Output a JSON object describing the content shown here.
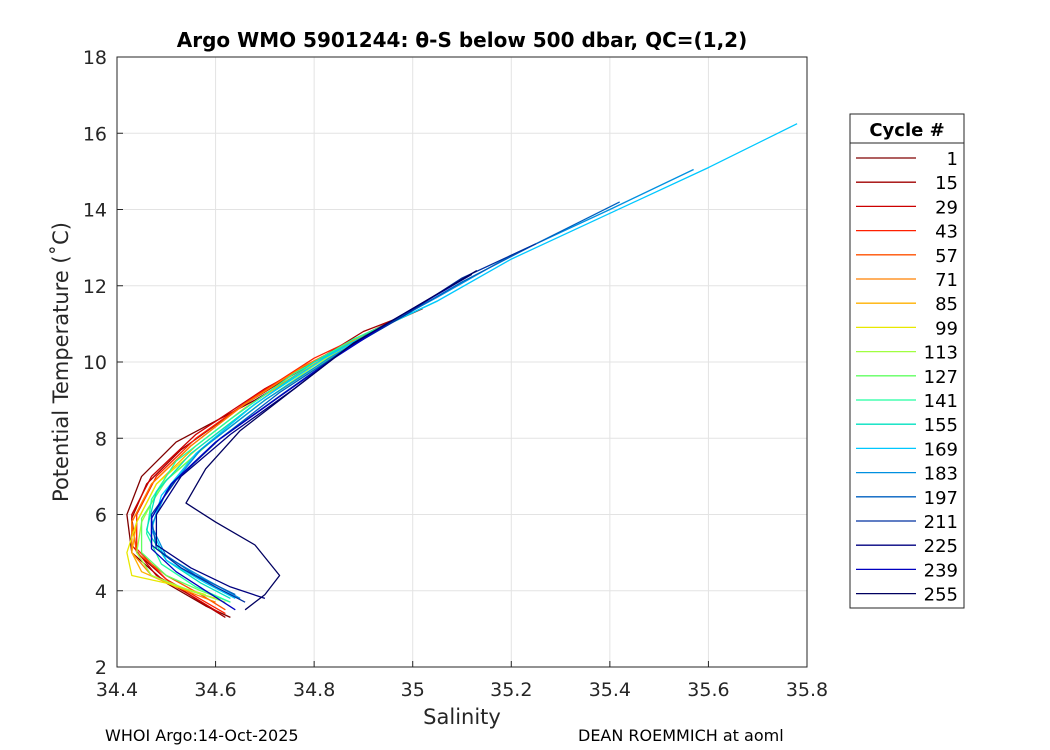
{
  "chart_data": {
    "type": "line",
    "title": "Argo WMO 5901244: θ-S below 500 dbar,  QC=(1,2)",
    "xlabel": "Salinity",
    "ylabel": "Potential Temperature (˚C)",
    "xlim": [
      34.4,
      35.8
    ],
    "ylim": [
      2,
      18
    ],
    "xticks": [
      34.4,
      34.6,
      34.8,
      35,
      35.2,
      35.4,
      35.6,
      35.8
    ],
    "xtick_labels": [
      "34.4",
      "34.6",
      "34.8",
      "35",
      "35.2",
      "35.4",
      "35.6",
      "35.8"
    ],
    "yticks": [
      2,
      4,
      6,
      8,
      10,
      12,
      14,
      16,
      18
    ],
    "ytick_labels": [
      "2",
      "4",
      "6",
      "8",
      "10",
      "12",
      "14",
      "16",
      "18"
    ],
    "grid": true,
    "legend_title": "Cycle #",
    "legend_position": "right",
    "colormap": "jet",
    "series": [
      {
        "name": "1",
        "color": "#800000",
        "points": [
          [
            35.02,
            11.4
          ],
          [
            34.95,
            11.0
          ],
          [
            34.82,
            10.1
          ],
          [
            34.68,
            9.0
          ],
          [
            34.52,
            7.9
          ],
          [
            34.45,
            7.0
          ],
          [
            34.42,
            6.0
          ],
          [
            34.43,
            5.0
          ],
          [
            34.5,
            4.2
          ],
          [
            34.58,
            3.6
          ],
          [
            34.63,
            3.3
          ]
        ]
      },
      {
        "name": "15",
        "color": "#a00000",
        "points": [
          [
            35.0,
            11.3
          ],
          [
            34.9,
            10.8
          ],
          [
            34.8,
            10.0
          ],
          [
            34.66,
            8.9
          ],
          [
            34.53,
            7.7
          ],
          [
            34.46,
            6.8
          ],
          [
            34.43,
            5.9
          ],
          [
            34.44,
            5.0
          ],
          [
            34.5,
            4.3
          ],
          [
            34.57,
            3.7
          ],
          [
            34.62,
            3.3
          ]
        ]
      },
      {
        "name": "29",
        "color": "#cc0000",
        "points": [
          [
            34.96,
            11.1
          ],
          [
            34.84,
            10.3
          ],
          [
            34.7,
            9.3
          ],
          [
            34.56,
            8.1
          ],
          [
            34.47,
            7.0
          ],
          [
            34.43,
            6.0
          ],
          [
            34.43,
            5.2
          ],
          [
            34.48,
            4.4
          ],
          [
            34.56,
            3.8
          ],
          [
            34.61,
            3.4
          ]
        ]
      },
      {
        "name": "43",
        "color": "#ff2000",
        "points": [
          [
            34.93,
            10.9
          ],
          [
            34.8,
            10.1
          ],
          [
            34.68,
            9.1
          ],
          [
            34.56,
            8.0
          ],
          [
            34.48,
            7.0
          ],
          [
            34.44,
            6.0
          ],
          [
            34.44,
            5.1
          ],
          [
            34.5,
            4.3
          ],
          [
            34.58,
            3.7
          ],
          [
            34.62,
            3.4
          ]
        ]
      },
      {
        "name": "57",
        "color": "#ff5000",
        "points": [
          [
            34.92,
            10.8
          ],
          [
            34.78,
            9.9
          ],
          [
            34.66,
            8.9
          ],
          [
            34.55,
            7.8
          ],
          [
            34.47,
            6.8
          ],
          [
            34.43,
            5.8
          ],
          [
            34.44,
            5.0
          ],
          [
            34.5,
            4.4
          ],
          [
            34.57,
            3.9
          ],
          [
            34.62,
            3.5
          ]
        ]
      },
      {
        "name": "71",
        "color": "#ff8000",
        "points": [
          [
            34.9,
            10.7
          ],
          [
            34.78,
            9.9
          ],
          [
            34.66,
            8.9
          ],
          [
            34.55,
            7.8
          ],
          [
            34.47,
            6.8
          ],
          [
            34.43,
            5.8
          ],
          [
            34.43,
            5.0
          ],
          [
            34.47,
            4.4
          ],
          [
            34.54,
            4.0
          ],
          [
            34.6,
            3.7
          ]
        ]
      },
      {
        "name": "85",
        "color": "#ffb000",
        "points": [
          [
            34.9,
            10.7
          ],
          [
            34.78,
            9.8
          ],
          [
            34.66,
            8.8
          ],
          [
            34.56,
            7.8
          ],
          [
            34.48,
            6.8
          ],
          [
            34.44,
            5.8
          ],
          [
            34.43,
            5.0
          ],
          [
            34.45,
            4.5
          ],
          [
            34.52,
            4.1
          ],
          [
            34.6,
            3.8
          ]
        ]
      },
      {
        "name": "99",
        "color": "#e8e800",
        "points": [
          [
            34.9,
            10.6
          ],
          [
            34.78,
            9.8
          ],
          [
            34.67,
            8.8
          ],
          [
            34.57,
            7.8
          ],
          [
            34.48,
            6.8
          ],
          [
            34.44,
            5.8
          ],
          [
            34.42,
            5.0
          ],
          [
            34.43,
            4.4
          ],
          [
            34.5,
            4.2
          ],
          [
            34.58,
            3.9
          ]
        ]
      },
      {
        "name": "113",
        "color": "#a0ff40",
        "points": [
          [
            34.92,
            10.8
          ],
          [
            34.8,
            9.9
          ],
          [
            34.69,
            8.9
          ],
          [
            34.58,
            7.8
          ],
          [
            34.49,
            6.8
          ],
          [
            34.45,
            5.8
          ],
          [
            34.44,
            5.0
          ],
          [
            34.47,
            4.4
          ],
          [
            34.55,
            4.0
          ],
          [
            34.62,
            3.7
          ]
        ]
      },
      {
        "name": "127",
        "color": "#60ff60",
        "points": [
          [
            34.94,
            10.9
          ],
          [
            34.82,
            10.0
          ],
          [
            34.7,
            9.0
          ],
          [
            34.59,
            7.9
          ],
          [
            34.5,
            6.9
          ],
          [
            34.45,
            5.9
          ],
          [
            34.45,
            5.0
          ],
          [
            34.5,
            4.4
          ],
          [
            34.57,
            4.0
          ],
          [
            34.63,
            3.7
          ]
        ]
      },
      {
        "name": "141",
        "color": "#20ffa0",
        "points": [
          [
            35.0,
            11.3
          ],
          [
            34.88,
            10.6
          ],
          [
            34.76,
            9.7
          ],
          [
            34.63,
            8.5
          ],
          [
            34.52,
            7.4
          ],
          [
            34.47,
            6.4
          ],
          [
            34.46,
            5.5
          ],
          [
            34.49,
            4.7
          ],
          [
            34.56,
            4.1
          ],
          [
            34.63,
            3.7
          ]
        ]
      },
      {
        "name": "155",
        "color": "#00e0c0",
        "points": [
          [
            35.05,
            11.6
          ],
          [
            34.92,
            10.8
          ],
          [
            34.8,
            10.0
          ],
          [
            34.67,
            8.8
          ],
          [
            34.55,
            7.6
          ],
          [
            34.48,
            6.6
          ],
          [
            34.46,
            5.6
          ],
          [
            34.5,
            4.8
          ],
          [
            34.57,
            4.2
          ],
          [
            34.63,
            3.8
          ]
        ]
      },
      {
        "name": "169",
        "color": "#00c8ff",
        "points": [
          [
            35.78,
            16.25
          ],
          [
            35.6,
            15.1
          ],
          [
            35.4,
            13.9
          ],
          [
            35.2,
            12.7
          ],
          [
            35.05,
            11.6
          ],
          [
            34.95,
            11.0
          ],
          [
            34.82,
            10.1
          ],
          [
            34.68,
            8.9
          ],
          [
            34.56,
            7.6
          ],
          [
            34.49,
            6.5
          ],
          [
            34.47,
            5.6
          ],
          [
            34.5,
            4.8
          ],
          [
            34.58,
            4.2
          ],
          [
            34.64,
            3.8
          ]
        ]
      },
      {
        "name": "183",
        "color": "#0090e0",
        "points": [
          [
            35.57,
            15.05
          ],
          [
            35.4,
            14.0
          ],
          [
            35.2,
            12.8
          ],
          [
            35.05,
            11.7
          ],
          [
            34.95,
            11.0
          ],
          [
            34.83,
            10.1
          ],
          [
            34.7,
            9.0
          ],
          [
            34.57,
            7.7
          ],
          [
            34.5,
            6.6
          ],
          [
            34.47,
            5.7
          ],
          [
            34.5,
            4.9
          ],
          [
            34.58,
            4.3
          ],
          [
            34.65,
            3.8
          ]
        ]
      },
      {
        "name": "197",
        "color": "#0060c0",
        "points": [
          [
            35.42,
            14.2
          ],
          [
            35.25,
            13.1
          ],
          [
            35.1,
            12.1
          ],
          [
            34.98,
            11.2
          ],
          [
            34.86,
            10.3
          ],
          [
            34.73,
            9.2
          ],
          [
            34.6,
            7.9
          ],
          [
            34.51,
            6.8
          ],
          [
            34.47,
            5.9
          ],
          [
            34.48,
            5.1
          ],
          [
            34.56,
            4.4
          ],
          [
            34.64,
            3.9
          ]
        ]
      },
      {
        "name": "211",
        "color": "#0030a0",
        "points": [
          [
            35.25,
            13.1
          ],
          [
            35.1,
            12.2
          ],
          [
            34.98,
            11.2
          ],
          [
            34.86,
            10.3
          ],
          [
            34.74,
            9.2
          ],
          [
            34.61,
            8.0
          ],
          [
            34.52,
            6.9
          ],
          [
            34.47,
            6.0
          ],
          [
            34.47,
            5.2
          ],
          [
            34.53,
            4.6
          ],
          [
            34.6,
            4.1
          ],
          [
            34.66,
            3.7
          ]
        ]
      },
      {
        "name": "225",
        "color": "#000080",
        "points": [
          [
            35.12,
            12.3
          ],
          [
            35.0,
            11.4
          ],
          [
            34.87,
            10.4
          ],
          [
            34.76,
            9.3
          ],
          [
            34.63,
            8.1
          ],
          [
            34.53,
            7.0
          ],
          [
            34.48,
            6.0
          ],
          [
            34.48,
            5.2
          ],
          [
            34.55,
            4.6
          ],
          [
            34.63,
            4.1
          ],
          [
            34.7,
            3.8
          ]
        ]
      },
      {
        "name": "239",
        "color": "#0000c0",
        "points": [
          [
            35.08,
            12.0
          ],
          [
            34.96,
            11.1
          ],
          [
            34.84,
            10.1
          ],
          [
            34.72,
            9.0
          ],
          [
            34.6,
            7.9
          ],
          [
            34.51,
            6.8
          ],
          [
            34.47,
            5.9
          ],
          [
            34.47,
            5.1
          ],
          [
            34.52,
            4.5
          ],
          [
            34.58,
            4.0
          ],
          [
            34.64,
            3.5
          ]
        ]
      },
      {
        "name": "255",
        "color": "#000060",
        "points": [
          [
            35.13,
            12.4
          ],
          [
            35.0,
            11.4
          ],
          [
            34.88,
            10.5
          ],
          [
            34.77,
            9.4
          ],
          [
            34.65,
            8.2
          ],
          [
            34.58,
            7.2
          ],
          [
            34.54,
            6.3
          ],
          [
            34.6,
            5.8
          ],
          [
            34.68,
            5.2
          ],
          [
            34.73,
            4.4
          ],
          [
            34.7,
            3.9
          ],
          [
            34.66,
            3.5
          ]
        ]
      }
    ]
  },
  "footer": {
    "left": "WHOI Argo:14-Oct-2025",
    "right": "DEAN ROEMMICH at aoml"
  }
}
